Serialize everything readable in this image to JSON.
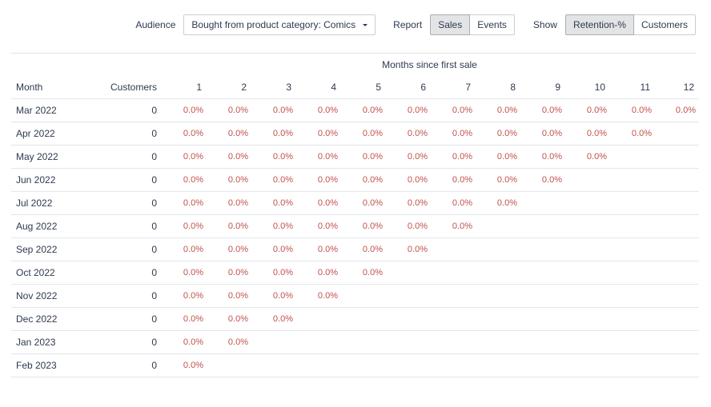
{
  "toolbar": {
    "audience_label": "Audience",
    "audience_value": "Bought from product category: Comics",
    "report_label": "Report",
    "report_options": [
      "Sales",
      "Events"
    ],
    "report_active": "Sales",
    "show_label": "Show",
    "show_options": [
      "Retention-%",
      "Customers"
    ],
    "show_active": "Retention-%"
  },
  "table": {
    "group_header": "Months since first sale",
    "month_header": "Month",
    "customers_header": "Customers",
    "period_headers": [
      "1",
      "2",
      "3",
      "4",
      "5",
      "6",
      "7",
      "8",
      "9",
      "10",
      "11",
      "12"
    ],
    "rows": [
      {
        "month": "Mar 2022",
        "customers": "0",
        "values": [
          "0.0%",
          "0.0%",
          "0.0%",
          "0.0%",
          "0.0%",
          "0.0%",
          "0.0%",
          "0.0%",
          "0.0%",
          "0.0%",
          "0.0%",
          "0.0%"
        ]
      },
      {
        "month": "Apr 2022",
        "customers": "0",
        "values": [
          "0.0%",
          "0.0%",
          "0.0%",
          "0.0%",
          "0.0%",
          "0.0%",
          "0.0%",
          "0.0%",
          "0.0%",
          "0.0%",
          "0.0%"
        ]
      },
      {
        "month": "May 2022",
        "customers": "0",
        "values": [
          "0.0%",
          "0.0%",
          "0.0%",
          "0.0%",
          "0.0%",
          "0.0%",
          "0.0%",
          "0.0%",
          "0.0%",
          "0.0%"
        ]
      },
      {
        "month": "Jun 2022",
        "customers": "0",
        "values": [
          "0.0%",
          "0.0%",
          "0.0%",
          "0.0%",
          "0.0%",
          "0.0%",
          "0.0%",
          "0.0%",
          "0.0%"
        ]
      },
      {
        "month": "Jul 2022",
        "customers": "0",
        "values": [
          "0.0%",
          "0.0%",
          "0.0%",
          "0.0%",
          "0.0%",
          "0.0%",
          "0.0%",
          "0.0%"
        ]
      },
      {
        "month": "Aug 2022",
        "customers": "0",
        "values": [
          "0.0%",
          "0.0%",
          "0.0%",
          "0.0%",
          "0.0%",
          "0.0%",
          "0.0%"
        ]
      },
      {
        "month": "Sep 2022",
        "customers": "0",
        "values": [
          "0.0%",
          "0.0%",
          "0.0%",
          "0.0%",
          "0.0%",
          "0.0%"
        ]
      },
      {
        "month": "Oct 2022",
        "customers": "0",
        "values": [
          "0.0%",
          "0.0%",
          "0.0%",
          "0.0%",
          "0.0%"
        ]
      },
      {
        "month": "Nov 2022",
        "customers": "0",
        "values": [
          "0.0%",
          "0.0%",
          "0.0%",
          "0.0%"
        ]
      },
      {
        "month": "Dec 2022",
        "customers": "0",
        "values": [
          "0.0%",
          "0.0%",
          "0.0%"
        ]
      },
      {
        "month": "Jan 2023",
        "customers": "0",
        "values": [
          "0.0%",
          "0.0%"
        ]
      },
      {
        "month": "Feb 2023",
        "customers": "0",
        "values": [
          "0.0%"
        ]
      }
    ]
  },
  "colors": {
    "text": "#2e3a4f",
    "retention_value": "#c0504d",
    "active_segment_bg": "#e3e4e6",
    "row_rule": "#e4e6ea"
  }
}
